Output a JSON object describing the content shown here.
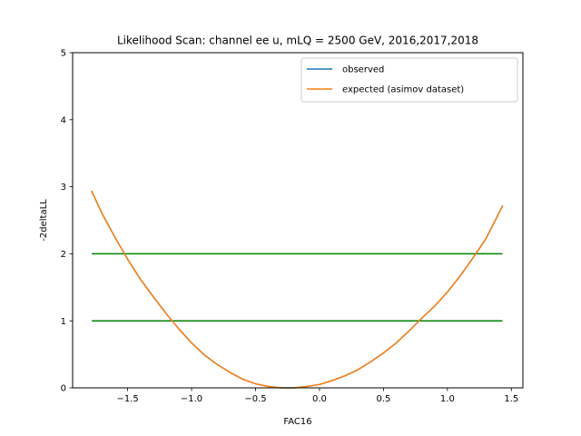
{
  "chart_data": {
    "type": "line",
    "title": "Likelihood Scan: channel ee u, mLQ = 2500 GeV, 2016,2017,2018",
    "xlabel": "FAC16",
    "ylabel": "-2deltaLL",
    "xlim": [
      -1.93,
      1.59
    ],
    "ylim": [
      0,
      5
    ],
    "x_ticks": [
      -1.5,
      -1.0,
      -0.5,
      0.0,
      0.5,
      1.0,
      1.5
    ],
    "x_tick_labels": [
      "−1.5",
      "−1.0",
      "−0.5",
      "0.0",
      "0.5",
      "1.0",
      "1.5"
    ],
    "y_ticks": [
      0,
      1,
      2,
      3,
      4,
      5
    ],
    "y_tick_labels": [
      "0",
      "1",
      "2",
      "3",
      "4",
      "5"
    ],
    "grid": false,
    "legend_position": "top-right",
    "series": [
      {
        "name": "observed",
        "color": "#1f77b4",
        "x": [
          -1.78,
          -1.7,
          -1.6,
          -1.5,
          -1.4,
          -1.3,
          -1.2,
          -1.1,
          -1.0,
          -0.9,
          -0.8,
          -0.7,
          -0.6,
          -0.5,
          -0.4,
          -0.3,
          -0.2,
          -0.1,
          0.0,
          0.1,
          0.2,
          0.3,
          0.4,
          0.5,
          0.6,
          0.7,
          0.8,
          0.9,
          1.0,
          1.1,
          1.2,
          1.3,
          1.43
        ],
        "y": [
          2.93,
          2.6,
          2.25,
          1.92,
          1.62,
          1.36,
          1.11,
          0.88,
          0.67,
          0.49,
          0.35,
          0.23,
          0.13,
          0.06,
          0.02,
          0.0,
          0.0,
          0.02,
          0.05,
          0.11,
          0.18,
          0.27,
          0.39,
          0.52,
          0.67,
          0.85,
          1.04,
          1.22,
          1.43,
          1.67,
          1.94,
          2.22,
          2.71
        ]
      },
      {
        "name": "expected (asimov dataset)",
        "color": "#ff7f0e",
        "x": [
          -1.78,
          -1.7,
          -1.6,
          -1.5,
          -1.4,
          -1.3,
          -1.2,
          -1.1,
          -1.0,
          -0.9,
          -0.8,
          -0.7,
          -0.6,
          -0.5,
          -0.4,
          -0.3,
          -0.2,
          -0.1,
          0.0,
          0.1,
          0.2,
          0.3,
          0.4,
          0.5,
          0.6,
          0.7,
          0.8,
          0.9,
          1.0,
          1.1,
          1.2,
          1.3,
          1.43
        ],
        "y": [
          2.93,
          2.6,
          2.25,
          1.92,
          1.62,
          1.36,
          1.11,
          0.88,
          0.67,
          0.49,
          0.35,
          0.23,
          0.13,
          0.06,
          0.02,
          0.0,
          0.0,
          0.02,
          0.05,
          0.11,
          0.18,
          0.27,
          0.39,
          0.52,
          0.67,
          0.85,
          1.04,
          1.22,
          1.43,
          1.67,
          1.94,
          2.22,
          2.71
        ]
      }
    ],
    "reference_lines": [
      {
        "y": 2,
        "x_start": -1.78,
        "x_end": 1.43,
        "color": "#008000"
      },
      {
        "y": 1,
        "x_start": -1.78,
        "x_end": 1.43,
        "color": "#008000"
      }
    ]
  }
}
